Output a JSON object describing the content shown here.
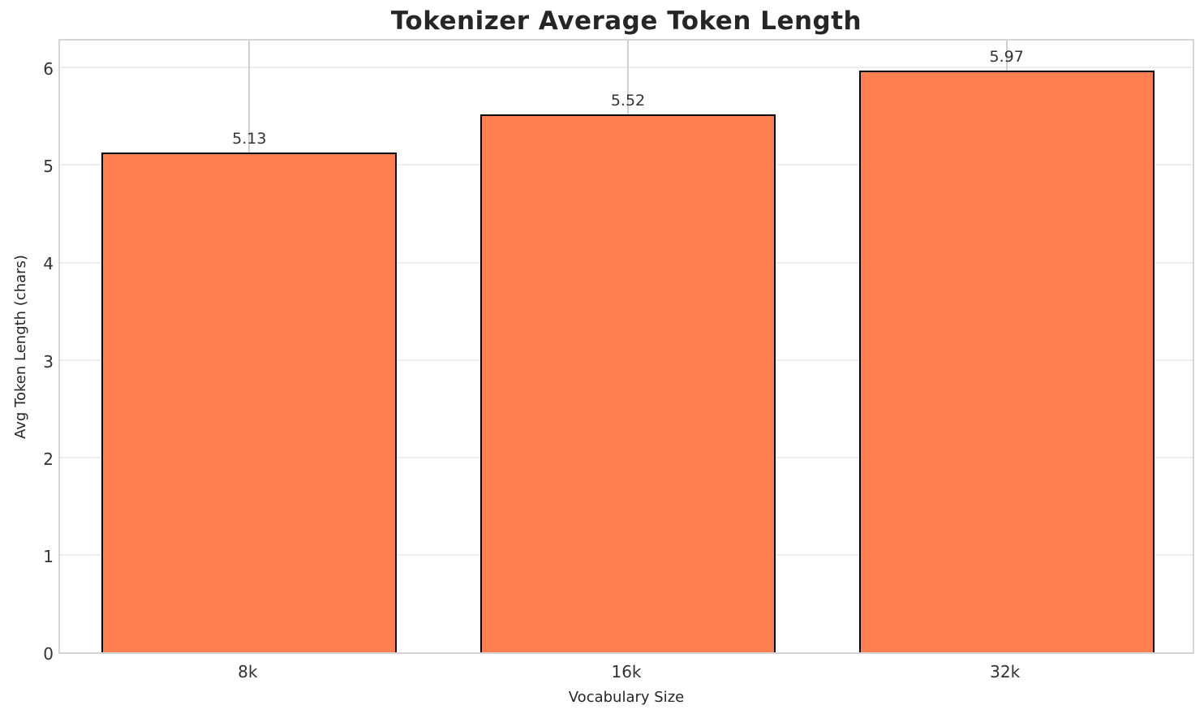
{
  "chart_data": {
    "type": "bar",
    "title": "Tokenizer Average Token Length",
    "categories": [
      "8k",
      "16k",
      "32k"
    ],
    "values": [
      5.13,
      5.52,
      5.97
    ],
    "value_labels": [
      "5.13",
      "5.52",
      "5.97"
    ],
    "xlabel": "Vocabulary Size",
    "ylabel": "Avg Token Length (chars)",
    "yticks": [
      0,
      1,
      2,
      3,
      4,
      5,
      6
    ],
    "ylim": [
      0,
      6.31
    ],
    "grid": true,
    "legend_position": "none",
    "bar_fill_color": "#FF7F50",
    "bar_edge_color": "#000000",
    "hgrid_color": "#ededed",
    "vgrid_color": "#d0d0d0",
    "spine_color": "#d5d5d5",
    "text_color": "#262626",
    "tick_color": "#333333"
  }
}
